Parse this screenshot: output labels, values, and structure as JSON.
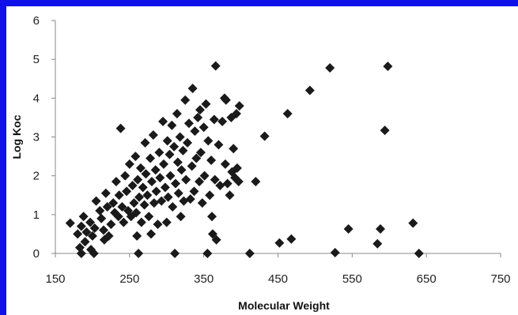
{
  "chart_data": {
    "type": "scatter",
    "title": "",
    "xlabel": "Molecular Weight",
    "ylabel": "Log Koc",
    "xlim": [
      150,
      750
    ],
    "ylim": [
      0,
      6
    ],
    "xticks": [
      150,
      250,
      350,
      450,
      550,
      650,
      750
    ],
    "yticks": [
      0,
      1,
      2,
      3,
      4,
      5,
      6
    ],
    "grid": false,
    "legend": "none",
    "marker": "diamond",
    "marker_color": "#1a1a1a",
    "frame_color": "#1010e8",
    "series": [
      {
        "points": [
          [
            170,
            0.78
          ],
          [
            180,
            0.5
          ],
          [
            183,
            0.15
          ],
          [
            185,
            0.0
          ],
          [
            185,
            0.7
          ],
          [
            188,
            0.95
          ],
          [
            190,
            0.3
          ],
          [
            192,
            0.55
          ],
          [
            197,
            0.8
          ],
          [
            198,
            0.1
          ],
          [
            200,
            0.45
          ],
          [
            202,
            0.0
          ],
          [
            203,
            0.65
          ],
          [
            205,
            1.35
          ],
          [
            210,
            1.1
          ],
          [
            212,
            0.9
          ],
          [
            215,
            0.6
          ],
          [
            216,
            0.35
          ],
          [
            218,
            1.55
          ],
          [
            220,
            1.2
          ],
          [
            222,
            0.45
          ],
          [
            225,
            0.75
          ],
          [
            228,
            1.3
          ],
          [
            230,
            1.05
          ],
          [
            232,
            1.85
          ],
          [
            235,
            0.95
          ],
          [
            236,
            1.5
          ],
          [
            238,
            3.22
          ],
          [
            240,
            1.2
          ],
          [
            242,
            0.8
          ],
          [
            244,
            2.0
          ],
          [
            246,
            1.6
          ],
          [
            248,
            1.1
          ],
          [
            250,
            2.3
          ],
          [
            252,
            0.95
          ],
          [
            254,
            1.75
          ],
          [
            256,
            1.3
          ],
          [
            258,
            2.5
          ],
          [
            259,
            1.05
          ],
          [
            260,
            0.45
          ],
          [
            261,
            1.9
          ],
          [
            262,
            0.0
          ],
          [
            263,
            1.45
          ],
          [
            265,
            2.2
          ],
          [
            266,
            0.8
          ],
          [
            268,
            1.7
          ],
          [
            270,
            1.25
          ],
          [
            271,
            2.85
          ],
          [
            272,
            2.05
          ],
          [
            274,
            1.5
          ],
          [
            276,
            0.95
          ],
          [
            278,
            2.45
          ],
          [
            279,
            0.5
          ],
          [
            280,
            1.85
          ],
          [
            282,
            3.05
          ],
          [
            283,
            1.3
          ],
          [
            285,
            2.15
          ],
          [
            286,
            1.6
          ],
          [
            288,
            0.75
          ],
          [
            290,
            2.6
          ],
          [
            291,
            1.95
          ],
          [
            293,
            1.35
          ],
          [
            295,
            3.4
          ],
          [
            296,
            2.3
          ],
          [
            298,
            1.7
          ],
          [
            300,
            0.8
          ],
          [
            301,
            2.9
          ],
          [
            302,
            1.45
          ],
          [
            304,
            2.55
          ],
          [
            305,
            2.0
          ],
          [
            307,
            3.3
          ],
          [
            308,
            1.2
          ],
          [
            310,
            2.75
          ],
          [
            311,
            0.0
          ],
          [
            312,
            1.8
          ],
          [
            314,
            3.6
          ],
          [
            315,
            2.35
          ],
          [
            316,
            1.55
          ],
          [
            318,
            3.0
          ],
          [
            319,
            0.95
          ],
          [
            320,
            2.15
          ],
          [
            322,
            2.65
          ],
          [
            323,
            1.35
          ],
          [
            325,
            3.95
          ],
          [
            326,
            1.9
          ],
          [
            328,
            2.85
          ],
          [
            330,
            3.35
          ],
          [
            332,
            1.4
          ],
          [
            334,
            2.25
          ],
          [
            335,
            4.25
          ],
          [
            337,
            1.6
          ],
          [
            338,
            3.15
          ],
          [
            340,
            2.45
          ],
          [
            342,
            3.5
          ],
          [
            344,
            1.85
          ],
          [
            345,
            3.7
          ],
          [
            346,
            2.6
          ],
          [
            348,
            1.3
          ],
          [
            350,
            3.25
          ],
          [
            351,
            2.0
          ],
          [
            353,
            3.85
          ],
          [
            355,
            0.0
          ],
          [
            356,
            2.9
          ],
          [
            358,
            1.5
          ],
          [
            360,
            2.4
          ],
          [
            361,
            0.95
          ],
          [
            362,
            0.5
          ],
          [
            364,
            3.45
          ],
          [
            365,
            1.9
          ],
          [
            366,
            4.83
          ],
          [
            367,
            0.35
          ],
          [
            370,
            2.8
          ],
          [
            372,
            1.75
          ],
          [
            375,
            3.4
          ],
          [
            378,
            4.0
          ],
          [
            379,
            2.3
          ],
          [
            380,
            3.95
          ],
          [
            382,
            1.8
          ],
          [
            385,
            1.5
          ],
          [
            387,
            3.5
          ],
          [
            388,
            2.1
          ],
          [
            390,
            2.7
          ],
          [
            392,
            1.95
          ],
          [
            394,
            3.6
          ],
          [
            395,
            2.2
          ],
          [
            397,
            1.85
          ],
          [
            398,
            3.8
          ],
          [
            412,
            0.0
          ],
          [
            420,
            1.85
          ],
          [
            432,
            3.02
          ],
          [
            452,
            0.27
          ],
          [
            463,
            3.6
          ],
          [
            468,
            0.37
          ],
          [
            493,
            4.2
          ],
          [
            520,
            4.78
          ],
          [
            527,
            0.02
          ],
          [
            545,
            0.63
          ],
          [
            584,
            0.25
          ],
          [
            588,
            0.63
          ],
          [
            594,
            3.17
          ],
          [
            598,
            4.82
          ],
          [
            632,
            0.78
          ],
          [
            640,
            0.0
          ]
        ]
      }
    ]
  }
}
